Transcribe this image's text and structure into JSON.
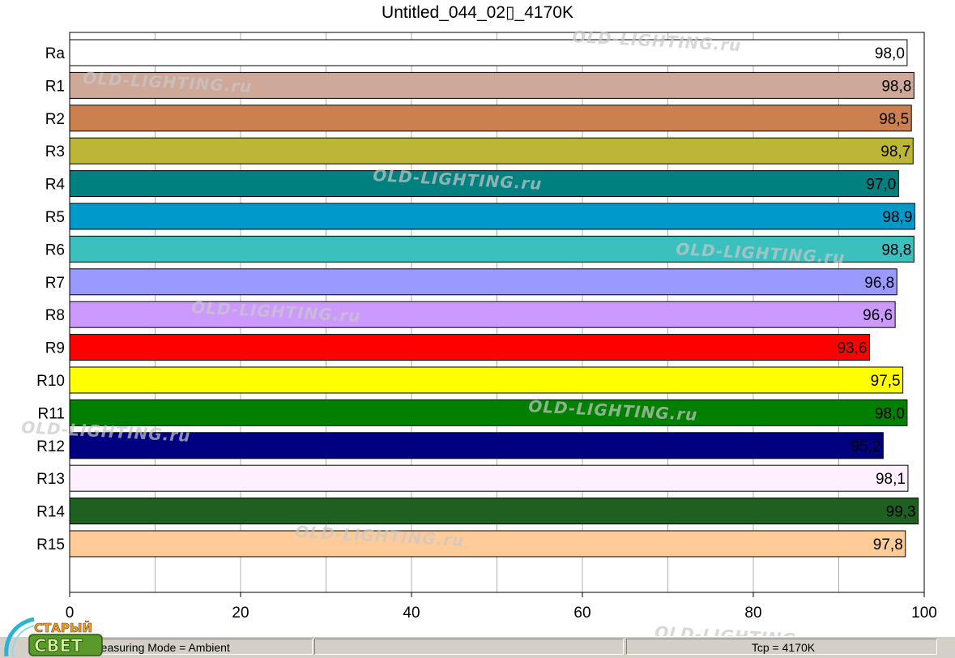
{
  "title": "Untitled_044_02▯_4170K",
  "watermark_text": "OLD-LIGHTING.ru",
  "logo": {
    "line1": "СТАРЫЙ",
    "line2": "СВЕТ"
  },
  "status_bar": {
    "mode": "Measuring Mode = Ambient",
    "cct": "Tcp = 4170K"
  },
  "chart_data": {
    "type": "bar",
    "orientation": "horizontal",
    "title": "Untitled_044_02▯_4170K",
    "xlim": [
      0,
      100
    ],
    "xticks": [
      0,
      20,
      40,
      60,
      80,
      100
    ],
    "grid": true,
    "categories": [
      "Ra",
      "R1",
      "R2",
      "R3",
      "R4",
      "R5",
      "R6",
      "R7",
      "R8",
      "R9",
      "R10",
      "R11",
      "R12",
      "R13",
      "R14",
      "R15"
    ],
    "values": [
      98.0,
      98.8,
      98.5,
      98.7,
      97.0,
      98.9,
      98.8,
      96.8,
      96.6,
      93.6,
      97.5,
      98.0,
      95.2,
      98.1,
      99.3,
      97.8
    ],
    "value_labels": [
      "98,0",
      "98,8",
      "98,5",
      "98,7",
      "97,0",
      "98,9",
      "98,8",
      "96,8",
      "96,6",
      "93,6",
      "97,5",
      "98,0",
      "95,2",
      "98,1",
      "99,3",
      "97,8"
    ],
    "colors": [
      "#ffffff",
      "#cea898",
      "#cc8050",
      "#bdb535",
      "#00807f",
      "#0099cc",
      "#3cc0be",
      "#9999ff",
      "#cc99ff",
      "#ff0000",
      "#ffff00",
      "#007f00",
      "#000080",
      "#ffefff",
      "#1f5f1f",
      "#ffcc99"
    ]
  }
}
